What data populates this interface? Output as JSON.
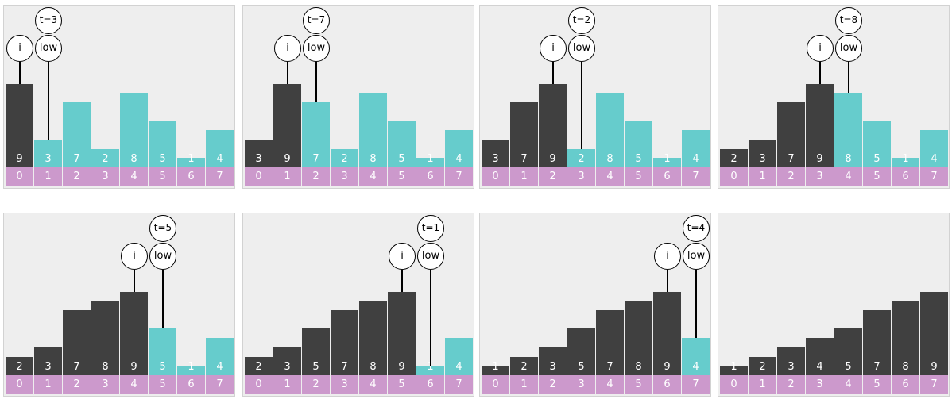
{
  "colors": {
    "sorted": "#404040",
    "unsorted": "#66cccc",
    "index_bg": "#cc99cc",
    "panel_bg": "#eeeeee",
    "marker_border": "#000000"
  },
  "labels": {
    "i": "i",
    "low": "low"
  },
  "panels": [
    {
      "values": [
        9,
        3,
        7,
        2,
        8,
        5,
        1,
        4
      ],
      "indices": [
        "0",
        "1",
        "2",
        "3",
        "4",
        "5",
        "6",
        "7"
      ],
      "sorted_count": 1,
      "i": 0,
      "low": 1,
      "t_label": "t=3"
    },
    {
      "values": [
        3,
        9,
        7,
        2,
        8,
        5,
        1,
        4
      ],
      "indices": [
        "0",
        "1",
        "2",
        "3",
        "4",
        "5",
        "6",
        "7"
      ],
      "sorted_count": 2,
      "i": 1,
      "low": 2,
      "t_label": "t=7"
    },
    {
      "values": [
        3,
        7,
        9,
        2,
        8,
        5,
        1,
        4
      ],
      "indices": [
        "0",
        "1",
        "2",
        "3",
        "4",
        "5",
        "6",
        "7"
      ],
      "sorted_count": 3,
      "i": 2,
      "low": 3,
      "t_label": "t=2"
    },
    {
      "values": [
        2,
        3,
        7,
        9,
        8,
        5,
        1,
        4
      ],
      "indices": [
        "0",
        "1",
        "2",
        "3",
        "4",
        "5",
        "6",
        "7"
      ],
      "sorted_count": 4,
      "i": 3,
      "low": 4,
      "t_label": "t=8"
    },
    {
      "values": [
        2,
        3,
        7,
        8,
        9,
        5,
        1,
        4
      ],
      "indices": [
        "0",
        "1",
        "2",
        "3",
        "4",
        "5",
        "6",
        "7"
      ],
      "sorted_count": 5,
      "i": 4,
      "low": 5,
      "t_label": "t=5"
    },
    {
      "values": [
        2,
        3,
        5,
        7,
        8,
        9,
        1,
        4
      ],
      "indices": [
        "0",
        "1",
        "2",
        "3",
        "4",
        "5",
        "6",
        "7"
      ],
      "sorted_count": 6,
      "i": 5,
      "low": 6,
      "t_label": "t=1"
    },
    {
      "values": [
        1,
        2,
        3,
        5,
        7,
        8,
        9,
        4
      ],
      "indices": [
        "0",
        "1",
        "2",
        "3",
        "4",
        "5",
        "6",
        "7"
      ],
      "sorted_count": 7,
      "i": 6,
      "low": 7,
      "t_label": "t=4"
    },
    {
      "values": [
        1,
        2,
        3,
        4,
        5,
        7,
        8,
        9
      ],
      "indices": [
        "0",
        "1",
        "2",
        "3",
        "4",
        "5",
        "6",
        "7"
      ],
      "sorted_count": 8,
      "i": null,
      "low": null,
      "t_label": ""
    }
  ]
}
